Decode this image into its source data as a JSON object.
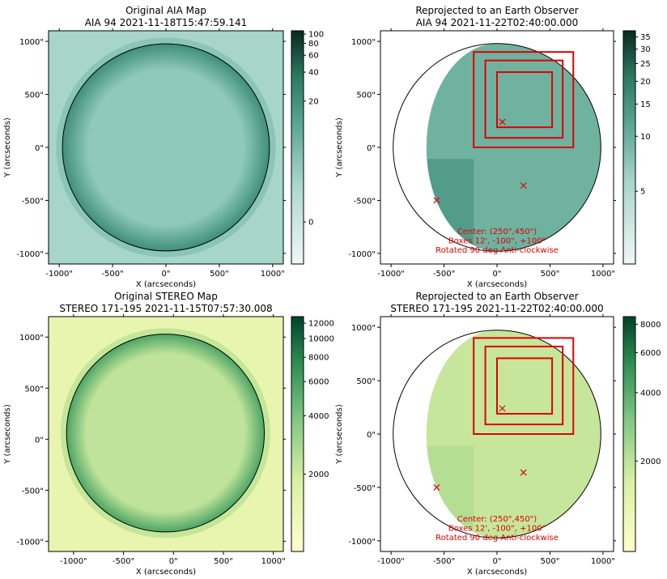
{
  "chart_data": [
    {
      "type": "heatmap",
      "title_lines": [
        "Original AIA Map",
        "AIA 94 2021-11-18T15:47:59.141"
      ],
      "xlabel": "X (arcseconds)",
      "ylabel": "Y (arcseconds)",
      "xlim": [
        -1100,
        1100
      ],
      "ylim": [
        -1100,
        1100
      ],
      "xticks": [
        -1000,
        -500,
        0,
        500,
        1000
      ],
      "xtick_labels": [
        "-1000\"",
        "-500\"",
        "0\"",
        "500\"",
        "1000\""
      ],
      "yticks": [
        -1000,
        -500,
        0,
        500,
        1000
      ],
      "ytick_labels": [
        "-1000\"",
        "-500\"",
        "0\"",
        "500\"",
        "1000\""
      ],
      "limb": {
        "cx": 0,
        "cy": 0,
        "r": 970
      },
      "colormap": "green",
      "colorbar": {
        "scale": "log",
        "ticks": [
          0,
          20,
          40,
          60,
          80,
          100
        ],
        "tick_labels": [
          "0",
          "20",
          "40",
          "60",
          "80",
          "100"
        ]
      }
    },
    {
      "type": "heatmap",
      "title_lines": [
        "Reprojected to an Earth Observer",
        "AIA 94 2021-11-22T02:40:00.000"
      ],
      "xlabel": "X (arcseconds)",
      "ylabel": "Y (arcseconds)",
      "xlim": [
        -1100,
        1100
      ],
      "ylim": [
        -1100,
        1100
      ],
      "xticks": [
        -1000,
        -500,
        0,
        500,
        1000
      ],
      "xtick_labels": [
        "-1000\"",
        "-500\"",
        "0\"",
        "500\"",
        "1000\""
      ],
      "yticks": [
        -1000,
        -500,
        0,
        500,
        1000
      ],
      "ytick_labels": [
        "-1000\"",
        "-500\"",
        "0\"",
        "500\"",
        "1000\""
      ],
      "limb": {
        "cx": 0,
        "cy": 0,
        "r": 980
      },
      "boxes": [
        {
          "x0": -220,
          "y0": 0,
          "x1": 720,
          "y1": 900
        },
        {
          "x0": -110,
          "y0": 90,
          "x1": 620,
          "y1": 820
        },
        {
          "x0": 0,
          "y0": 190,
          "x1": 520,
          "y1": 710
        }
      ],
      "markers": [
        {
          "x": 50,
          "y": 240
        },
        {
          "x": 250,
          "y": -360
        },
        {
          "x": -570,
          "y": -500
        }
      ],
      "annotation_lines": [
        "Center: (250\",450\")",
        "Boxes 12', -100\", +100\"",
        "Rotated 90 deg Anti-clockwise"
      ],
      "colormap": "green",
      "colorbar": {
        "scale": "log",
        "ticks": [
          5,
          10,
          15,
          20,
          25,
          30,
          35
        ],
        "tick_labels": [
          "5",
          "10",
          "15",
          "20",
          "25",
          "30",
          "35"
        ]
      }
    },
    {
      "type": "heatmap",
      "title_lines": [
        "Original STEREO Map",
        "STEREO 171-195 2021-11-15T07:57:30.008"
      ],
      "xlabel": "X (arcseconds)",
      "ylabel": "Y (arcseconds)",
      "xlim": [
        -1250,
        1100
      ],
      "ylim": [
        -1100,
        1200
      ],
      "xticks": [
        -1000,
        -500,
        0,
        500,
        1000
      ],
      "xtick_labels": [
        "-1000\"",
        "-500\"",
        "0\"",
        "500\"",
        "1000\""
      ],
      "yticks": [
        -1000,
        -500,
        0,
        500,
        1000
      ],
      "ytick_labels": [
        "-1000\"",
        "-500\"",
        "0\"",
        "500\"",
        "1000\""
      ],
      "limb": {
        "cx": -80,
        "cy": 60,
        "r": 990
      },
      "colormap": "yellow-green",
      "colorbar": {
        "scale": "log",
        "ticks": [
          2000,
          4000,
          6000,
          8000,
          10000,
          12000
        ],
        "tick_labels": [
          "2000",
          "4000",
          "6000",
          "8000",
          "10000",
          "12000"
        ]
      }
    },
    {
      "type": "heatmap",
      "title_lines": [
        "Reprojected to an Earth Observer",
        "STEREO 171-195 2021-11-22T02:40:00.000"
      ],
      "xlabel": "X (arcseconds)",
      "ylabel": "Y (arcseconds)",
      "xlim": [
        -1100,
        1100
      ],
      "ylim": [
        -1100,
        1100
      ],
      "xticks": [
        -1000,
        -500,
        0,
        500,
        1000
      ],
      "xtick_labels": [
        "-1000\"",
        "-500\"",
        "0\"",
        "500\"",
        "1000\""
      ],
      "yticks": [
        -1000,
        -500,
        0,
        500,
        1000
      ],
      "ytick_labels": [
        "-1000\"",
        "-500\"",
        "0\"",
        "500\"",
        "1000\""
      ],
      "limb": {
        "cx": 0,
        "cy": 0,
        "r": 980
      },
      "boxes": [
        {
          "x0": -220,
          "y0": 0,
          "x1": 720,
          "y1": 900
        },
        {
          "x0": -110,
          "y0": 90,
          "x1": 620,
          "y1": 820
        },
        {
          "x0": 0,
          "y0": 190,
          "x1": 520,
          "y1": 710
        }
      ],
      "markers": [
        {
          "x": 50,
          "y": 240
        },
        {
          "x": 250,
          "y": -360
        },
        {
          "x": -570,
          "y": -500
        }
      ],
      "annotation_lines": [
        "Center: (250\",450\")",
        "Boxes 12', -100\", +100\"",
        "Rotated 90 deg Anti-clockwise"
      ],
      "colormap": "yellow-green",
      "colorbar": {
        "scale": "log",
        "ticks": [
          2000,
          4000,
          6000,
          8000
        ],
        "tick_labels": [
          "2000",
          "4000",
          "6000",
          "8000"
        ]
      }
    }
  ]
}
